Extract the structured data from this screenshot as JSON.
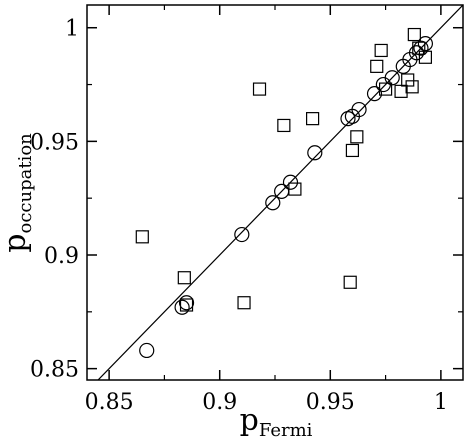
{
  "chart_data": {
    "type": "scatter",
    "title": "",
    "xlabel": {
      "base": "p",
      "subscript": "Fermi"
    },
    "ylabel": {
      "base": "p",
      "subscript": "occupation"
    },
    "xlim": [
      0.84,
      1.01
    ],
    "ylim": [
      0.845,
      1.01
    ],
    "xticks": [
      0.85,
      0.9,
      0.95,
      1.0
    ],
    "xtick_labels": [
      "0.85",
      "0.9",
      "0.95",
      "1"
    ],
    "yticks": [
      0.85,
      0.9,
      0.95,
      1.0
    ],
    "ytick_labels": [
      "0.85",
      "0.9",
      "0.95",
      "1"
    ],
    "grid": false,
    "legend": false,
    "reference_line": {
      "from": [
        0.84,
        0.84
      ],
      "to": [
        1.01,
        1.01
      ]
    },
    "series": [
      {
        "marker": "circle",
        "x": [
          0.867,
          0.883,
          0.885,
          0.91,
          0.924,
          0.928,
          0.932,
          0.943,
          0.958,
          0.96,
          0.963,
          0.97,
          0.974,
          0.978,
          0.983,
          0.986,
          0.989,
          0.991,
          0.993
        ],
        "y": [
          0.858,
          0.877,
          0.879,
          0.909,
          0.923,
          0.928,
          0.932,
          0.945,
          0.96,
          0.961,
          0.964,
          0.971,
          0.975,
          0.978,
          0.983,
          0.986,
          0.989,
          0.991,
          0.993
        ]
      },
      {
        "marker": "square",
        "x": [
          0.865,
          0.884,
          0.885,
          0.911,
          0.918,
          0.929,
          0.934,
          0.942,
          0.959,
          0.96,
          0.962,
          0.971,
          0.973,
          0.975,
          0.982,
          0.985,
          0.987,
          0.988,
          0.99,
          0.993
        ],
        "y": [
          0.908,
          0.89,
          0.878,
          0.879,
          0.973,
          0.957,
          0.929,
          0.96,
          0.888,
          0.946,
          0.952,
          0.983,
          0.99,
          0.973,
          0.972,
          0.977,
          0.974,
          0.997,
          0.991,
          0.987
        ]
      }
    ]
  }
}
